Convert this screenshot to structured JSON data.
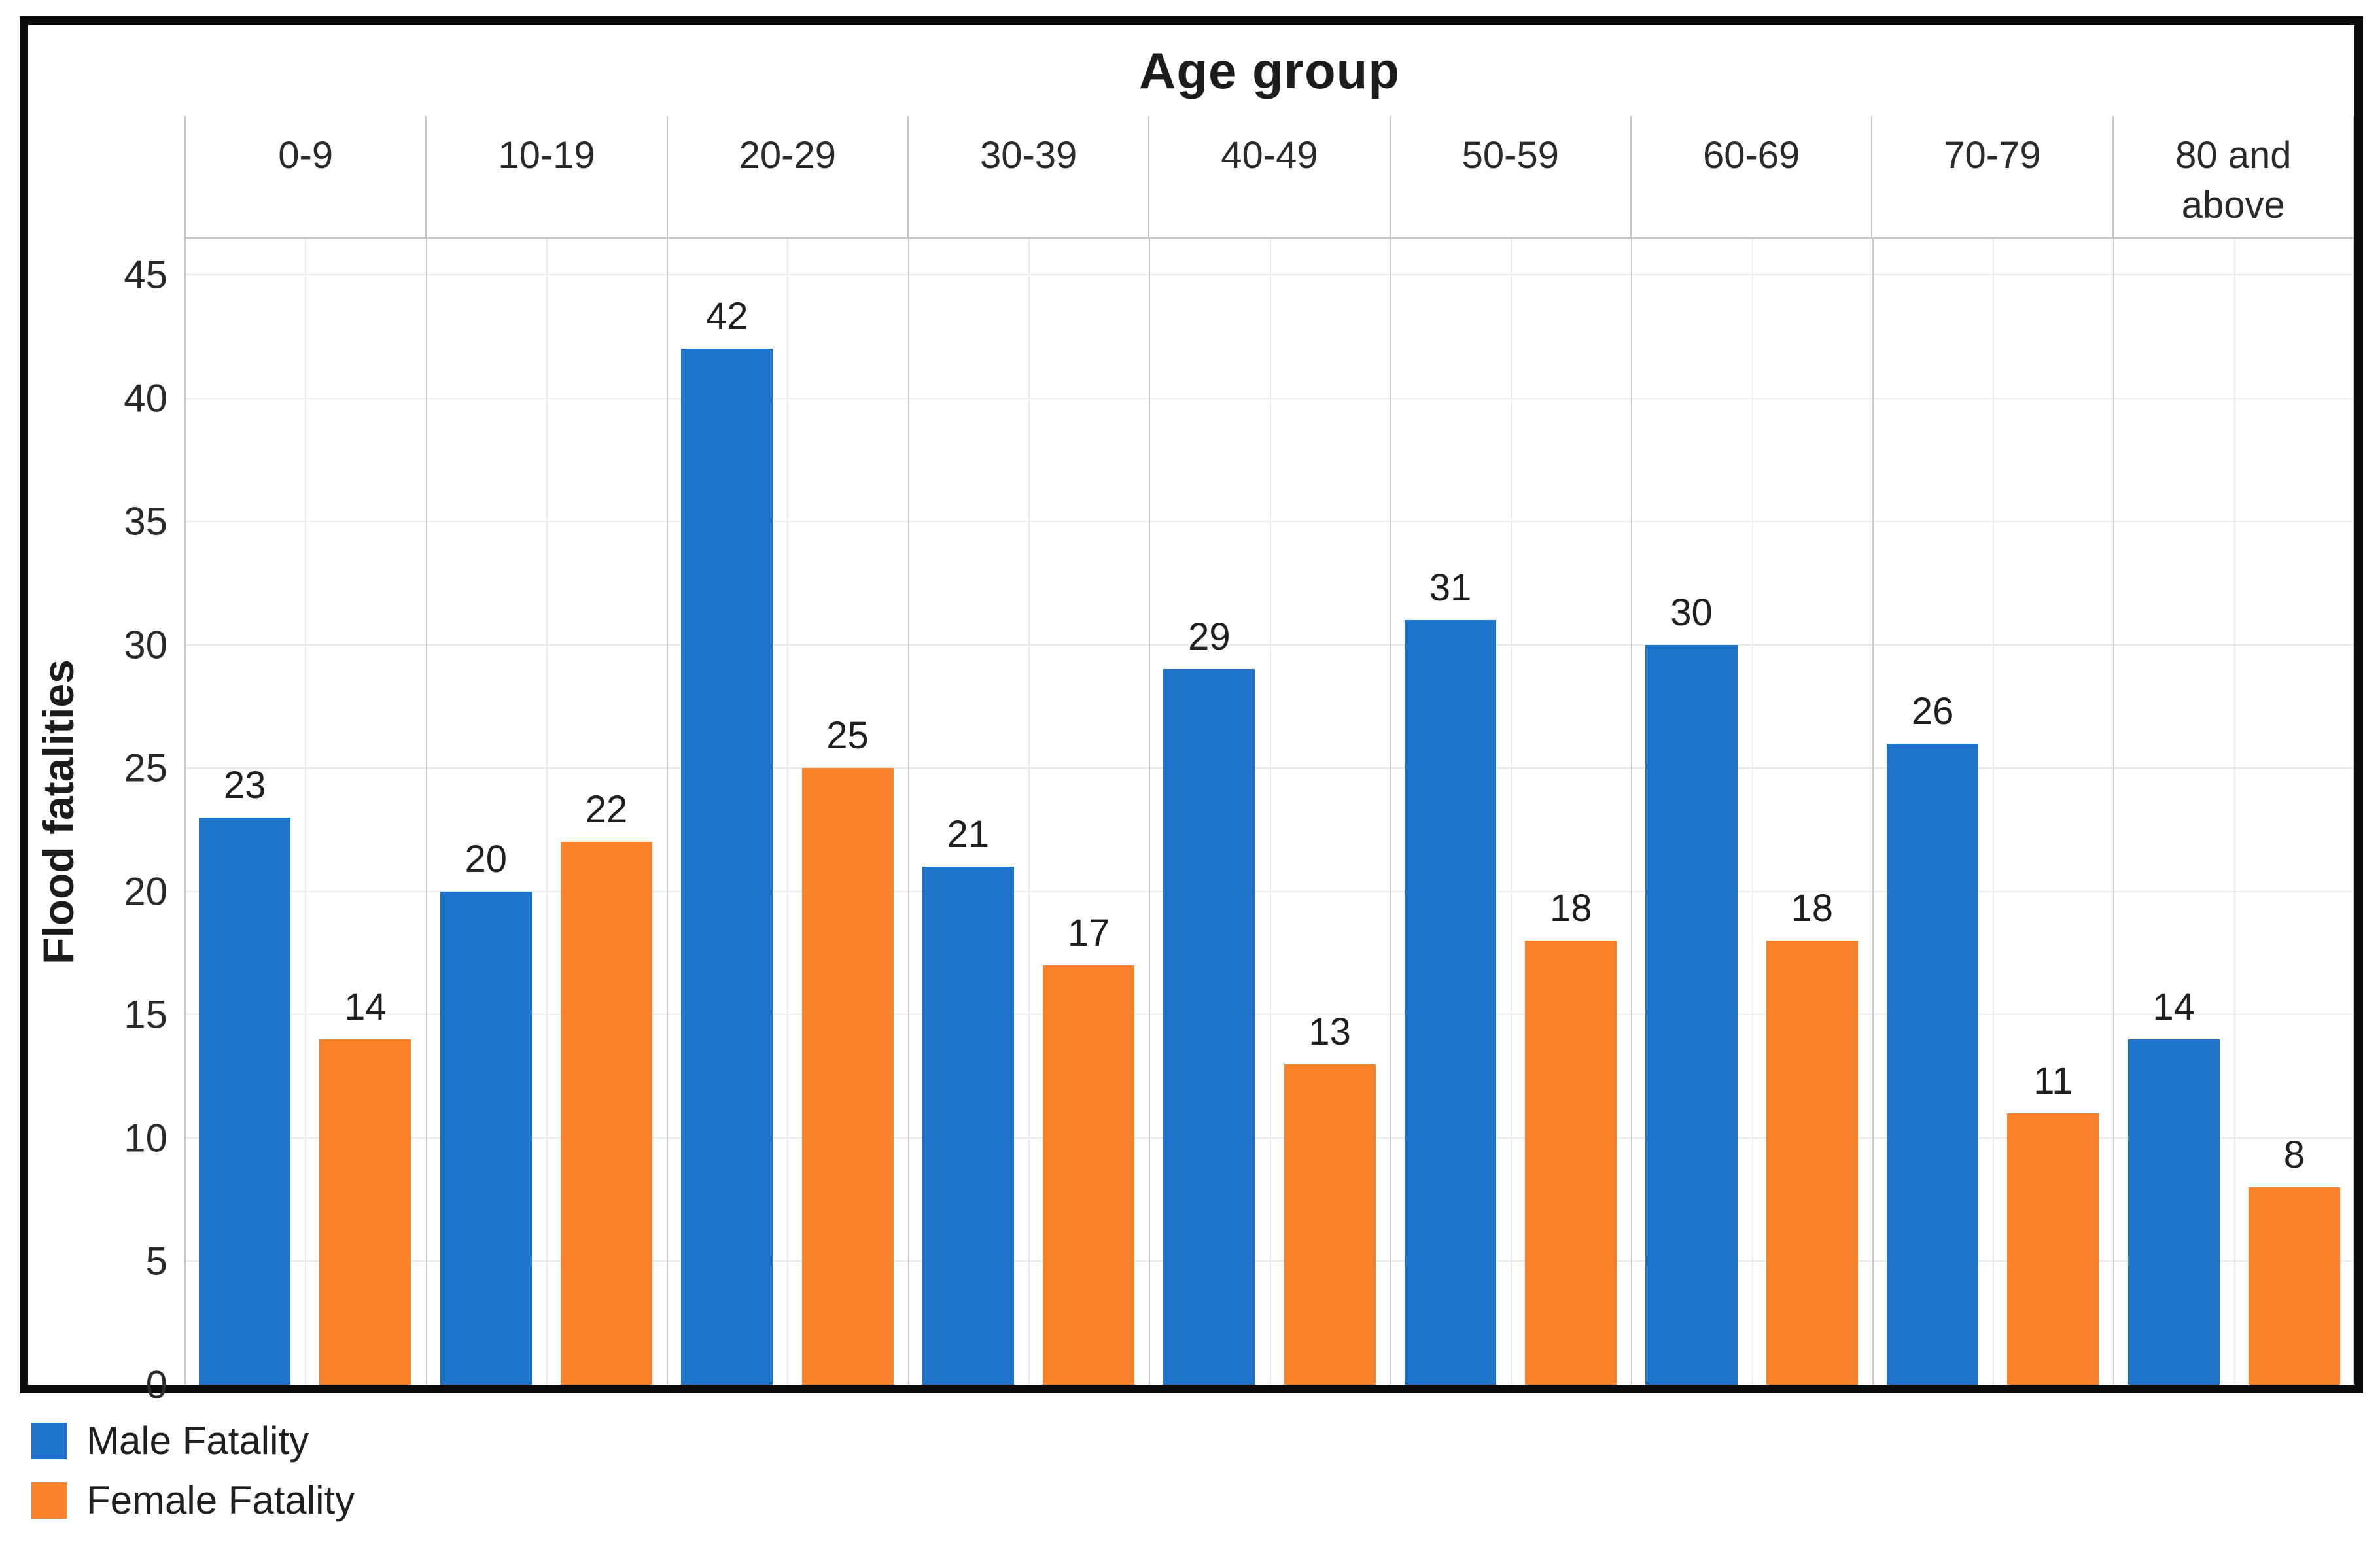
{
  "chart_data": {
    "type": "bar",
    "title": "Age group",
    "ylabel": "Flood fatalities",
    "categories": [
      "0-9",
      "10-19",
      "20-29",
      "30-39",
      "40-49",
      "50-59",
      "60-69",
      "70-79",
      "80 and above"
    ],
    "series": [
      {
        "name": "Male Fatality",
        "color": "#1e73ca",
        "values": [
          23,
          20,
          42,
          21,
          29,
          31,
          30,
          26,
          14
        ]
      },
      {
        "name": "Female Fatality",
        "color": "#f8812b",
        "values": [
          14,
          22,
          25,
          17,
          13,
          18,
          18,
          11,
          8
        ]
      }
    ],
    "ylim": [
      0,
      45
    ],
    "yticks": [
      0,
      5,
      10,
      15,
      20,
      25,
      30,
      35,
      40,
      45
    ],
    "grid": true,
    "bar_value_labels": true,
    "legend_position": "bottom-left"
  },
  "style_colors": {
    "male_bar": "#1e73ca",
    "female_bar": "#f8812b",
    "frame_border": "#0b0b0b",
    "grid_light": "#ebebeb",
    "grid_strong": "#c9c9c9"
  }
}
